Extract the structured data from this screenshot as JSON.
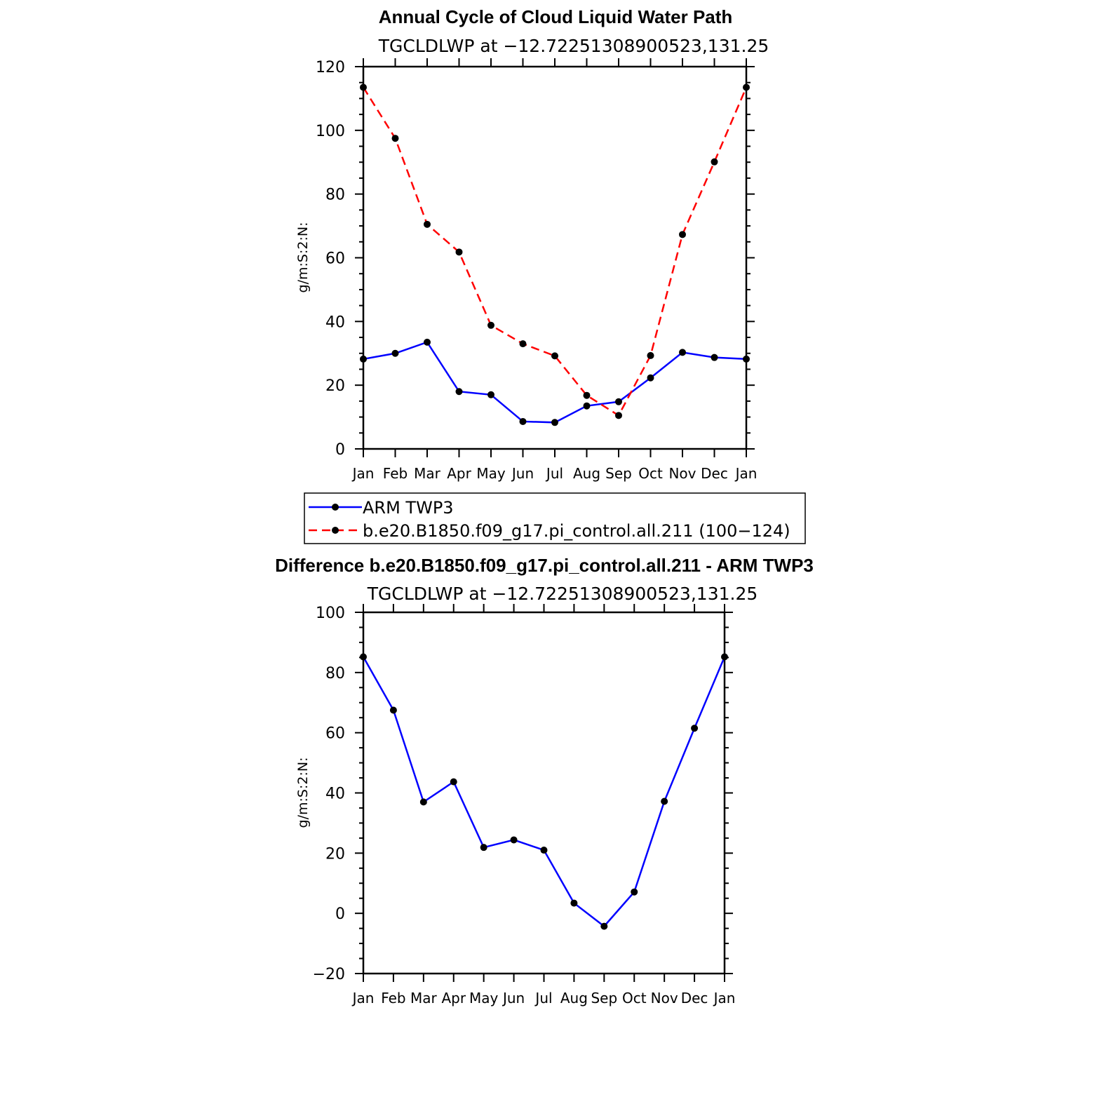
{
  "chart_data": [
    {
      "type": "line",
      "title": "Annual Cycle of Cloud Liquid Water Path",
      "subtitle": "TGCLDLWP  at  −12.72251308900523,131.25",
      "xlabel": "",
      "ylabel": "g/m:S:2:N:",
      "categories": [
        "Jan",
        "Feb",
        "Mar",
        "Apr",
        "May",
        "Jun",
        "Jul",
        "Aug",
        "Sep",
        "Oct",
        "Nov",
        "Dec",
        "Jan"
      ],
      "ylim": [
        0,
        120
      ],
      "yticks": [
        "0",
        "20",
        "40",
        "60",
        "80",
        "100",
        "120"
      ],
      "legend_placement": "below",
      "series": [
        {
          "name": "ARM TWP3",
          "color": "#0000ff",
          "dash": "solid",
          "values": [
            28.2,
            30.0,
            33.5,
            18.0,
            17.0,
            8.6,
            8.3,
            13.5,
            14.8,
            22.3,
            30.3,
            28.7,
            28.2
          ]
        },
        {
          "name": "b.e20.B1850.f09_g17.pi_control.all.211 (100−124)",
          "color": "#ff0000",
          "dash": "dashed",
          "values": [
            113.5,
            97.5,
            70.5,
            61.8,
            38.8,
            33.0,
            29.2,
            16.8,
            10.5,
            29.3,
            67.3,
            90.1,
            113.5
          ]
        }
      ]
    },
    {
      "type": "line",
      "title": "Difference b.e20.B1850.f09_g17.pi_control.all.211 - ARM TWP3",
      "subtitle": "TGCLDLWP  at  −12.72251308900523,131.25",
      "xlabel": "",
      "ylabel": "g/m:S:2:N:",
      "categories": [
        "Jan",
        "Feb",
        "Mar",
        "Apr",
        "May",
        "Jun",
        "Jul",
        "Aug",
        "Sep",
        "Oct",
        "Nov",
        "Dec",
        "Jan"
      ],
      "ylim": [
        -20,
        100
      ],
      "yticks": [
        "−20",
        "0",
        "20",
        "40",
        "60",
        "80",
        "100"
      ],
      "series": [
        {
          "color": "#0000ff",
          "dash": "solid",
          "values": [
            85.2,
            67.5,
            37.0,
            43.7,
            21.9,
            24.4,
            21.0,
            3.4,
            -4.3,
            7.1,
            37.2,
            61.5,
            85.2
          ]
        }
      ]
    }
  ]
}
